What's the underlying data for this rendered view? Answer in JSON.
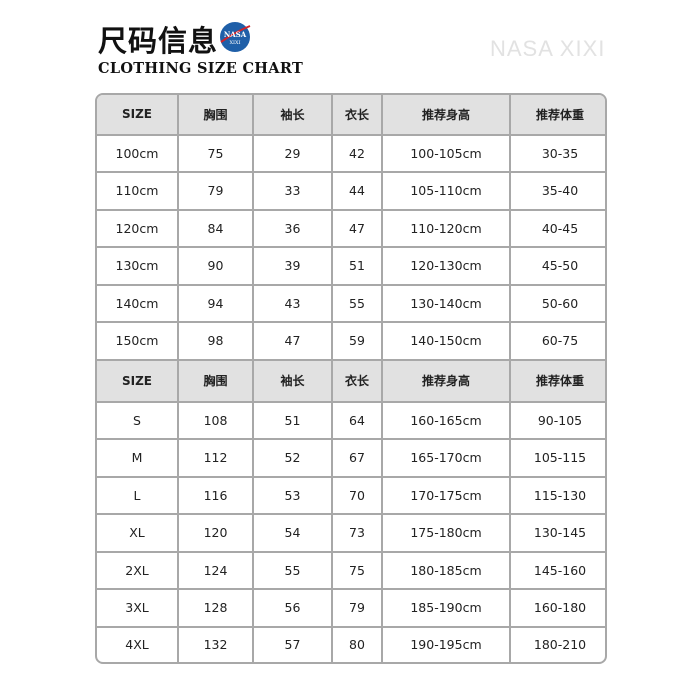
{
  "header": {
    "title_cn": "尺码信息",
    "title_en": "CLOTHING SIZE CHART",
    "brand": "NASA XIXI",
    "logo": {
      "name": "nasa-logo",
      "text": "NASA XIXI",
      "color": "#1f5fa8"
    }
  },
  "colors": {
    "header_bg": "#e1e1e1",
    "border": "#a8a8a8"
  },
  "tables": [
    {
      "columns": [
        "SIZE",
        "胸围",
        "袖长",
        "衣长",
        "推荐身高",
        "推荐体重"
      ],
      "rows": [
        [
          "100cm",
          "75",
          "29",
          "42",
          "100-105cm",
          "30-35"
        ],
        [
          "110cm",
          "79",
          "33",
          "44",
          "105-110cm",
          "35-40"
        ],
        [
          "120cm",
          "84",
          "36",
          "47",
          "110-120cm",
          "40-45"
        ],
        [
          "130cm",
          "90",
          "39",
          "51",
          "120-130cm",
          "45-50"
        ],
        [
          "140cm",
          "94",
          "43",
          "55",
          "130-140cm",
          "50-60"
        ],
        [
          "150cm",
          "98",
          "47",
          "59",
          "140-150cm",
          "60-75"
        ]
      ]
    },
    {
      "columns": [
        "SIZE",
        "胸围",
        "袖长",
        "衣长",
        "推荐身高",
        "推荐体重"
      ],
      "rows": [
        [
          "S",
          "108",
          "51",
          "64",
          "160-165cm",
          "90-105"
        ],
        [
          "M",
          "112",
          "52",
          "67",
          "165-170cm",
          "105-115"
        ],
        [
          "L",
          "116",
          "53",
          "70",
          "170-175cm",
          "115-130"
        ],
        [
          "XL",
          "120",
          "54",
          "73",
          "175-180cm",
          "130-145"
        ],
        [
          "2XL",
          "124",
          "55",
          "75",
          "180-185cm",
          "145-160"
        ],
        [
          "3XL",
          "128",
          "56",
          "79",
          "185-190cm",
          "160-180"
        ],
        [
          "4XL",
          "132",
          "57",
          "80",
          "190-195cm",
          "180-210"
        ]
      ]
    }
  ]
}
